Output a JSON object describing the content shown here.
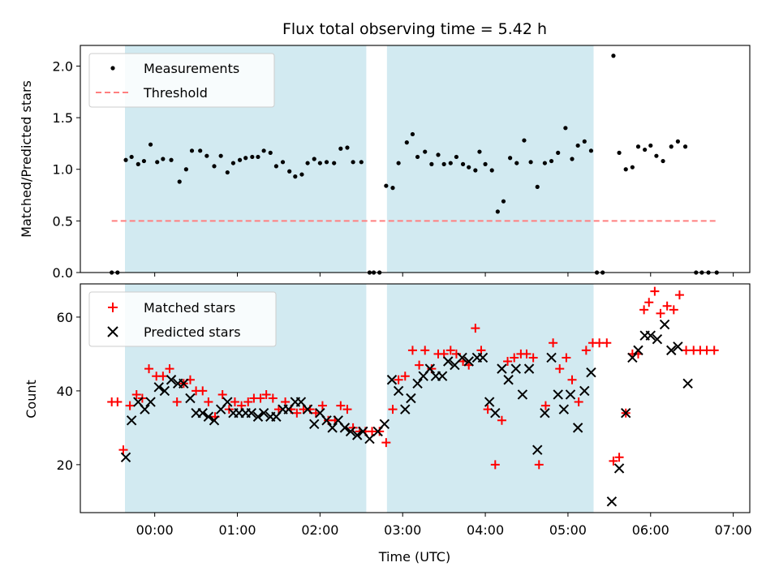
{
  "chart_data": {
    "type": "scatter",
    "title": "Flux total observing time = 5.42 h",
    "xlabel": "Time (UTC)",
    "x_unit": "hours UTC",
    "xlim": [
      -0.9,
      7.2
    ],
    "x_ticks": [
      {
        "value": 0,
        "label": "00:00"
      },
      {
        "value": 1,
        "label": "01:00"
      },
      {
        "value": 2,
        "label": "02:00"
      },
      {
        "value": 3,
        "label": "03:00"
      },
      {
        "value": 4,
        "label": "04:00"
      },
      {
        "value": 5,
        "label": "05:00"
      },
      {
        "value": 6,
        "label": "06:00"
      },
      {
        "value": 7,
        "label": "07:00"
      }
    ],
    "observing_windows": [
      [
        -0.36,
        2.56
      ],
      [
        2.81,
        5.31
      ]
    ],
    "top": {
      "ylabel": "Matched/Predicted stars",
      "ylim": [
        0,
        2.2
      ],
      "y_ticks": [
        "0.0",
        "0.5",
        "1.0",
        "1.5",
        "2.0"
      ],
      "threshold": {
        "value": 0.5,
        "x_range": [
          -0.52,
          6.8
        ]
      },
      "legend": {
        "measurements": "Measurements",
        "threshold": "Threshold",
        "position": "top-left"
      },
      "measurements": [
        [
          -0.52,
          0
        ],
        [
          -0.45,
          0
        ],
        [
          -0.35,
          1.09
        ],
        [
          -0.28,
          1.12
        ],
        [
          -0.2,
          1.05
        ],
        [
          -0.13,
          1.08
        ],
        [
          -0.05,
          1.24
        ],
        [
          0.03,
          1.07
        ],
        [
          0.1,
          1.1
        ],
        [
          0.2,
          1.09
        ],
        [
          0.3,
          0.88
        ],
        [
          0.38,
          1.0
        ],
        [
          0.45,
          1.18
        ],
        [
          0.55,
          1.18
        ],
        [
          0.63,
          1.13
        ],
        [
          0.72,
          1.03
        ],
        [
          0.8,
          1.13
        ],
        [
          0.88,
          0.97
        ],
        [
          0.95,
          1.06
        ],
        [
          1.03,
          1.09
        ],
        [
          1.1,
          1.11
        ],
        [
          1.18,
          1.12
        ],
        [
          1.25,
          1.12
        ],
        [
          1.32,
          1.18
        ],
        [
          1.4,
          1.16
        ],
        [
          1.47,
          1.03
        ],
        [
          1.55,
          1.07
        ],
        [
          1.63,
          0.98
        ],
        [
          1.7,
          0.93
        ],
        [
          1.78,
          0.95
        ],
        [
          1.85,
          1.06
        ],
        [
          1.93,
          1.1
        ],
        [
          2.0,
          1.06
        ],
        [
          2.08,
          1.07
        ],
        [
          2.17,
          1.06
        ],
        [
          2.25,
          1.2
        ],
        [
          2.33,
          1.21
        ],
        [
          2.4,
          1.07
        ],
        [
          2.5,
          1.07
        ],
        [
          2.6,
          0
        ],
        [
          2.65,
          0
        ],
        [
          2.72,
          0
        ],
        [
          2.8,
          0.84
        ],
        [
          2.88,
          0.82
        ],
        [
          2.95,
          1.06
        ],
        [
          3.05,
          1.26
        ],
        [
          3.12,
          1.34
        ],
        [
          3.18,
          1.12
        ],
        [
          3.27,
          1.17
        ],
        [
          3.35,
          1.05
        ],
        [
          3.43,
          1.14
        ],
        [
          3.5,
          1.05
        ],
        [
          3.58,
          1.06
        ],
        [
          3.65,
          1.12
        ],
        [
          3.73,
          1.05
        ],
        [
          3.8,
          1.02
        ],
        [
          3.88,
          0.99
        ],
        [
          3.93,
          1.17
        ],
        [
          4.0,
          1.05
        ],
        [
          4.08,
          0.99
        ],
        [
          4.15,
          0.59
        ],
        [
          4.22,
          0.69
        ],
        [
          4.3,
          1.11
        ],
        [
          4.38,
          1.06
        ],
        [
          4.47,
          1.28
        ],
        [
          4.55,
          1.07
        ],
        [
          4.63,
          0.83
        ],
        [
          4.72,
          1.06
        ],
        [
          4.8,
          1.08
        ],
        [
          4.88,
          1.16
        ],
        [
          4.97,
          1.4
        ],
        [
          5.05,
          1.1
        ],
        [
          5.12,
          1.23
        ],
        [
          5.2,
          1.27
        ],
        [
          5.28,
          1.18
        ],
        [
          5.35,
          0
        ],
        [
          5.42,
          0
        ],
        [
          5.55,
          2.1
        ],
        [
          5.62,
          1.16
        ],
        [
          5.7,
          1.0
        ],
        [
          5.78,
          1.02
        ],
        [
          5.85,
          1.22
        ],
        [
          5.93,
          1.19
        ],
        [
          6.0,
          1.23
        ],
        [
          6.07,
          1.13
        ],
        [
          6.15,
          1.08
        ],
        [
          6.25,
          1.22
        ],
        [
          6.33,
          1.27
        ],
        [
          6.42,
          1.22
        ],
        [
          6.55,
          0
        ],
        [
          6.62,
          0
        ],
        [
          6.7,
          0
        ],
        [
          6.8,
          0
        ]
      ]
    },
    "bottom": {
      "ylabel": "Count",
      "ylim": [
        7,
        69
      ],
      "y_ticks": [
        "20",
        "40",
        "60"
      ],
      "legend": {
        "matched": "Matched stars",
        "predicted": "Predicted stars",
        "position": "top-left"
      },
      "matched_stars": [
        [
          -0.52,
          37
        ],
        [
          -0.45,
          37
        ],
        [
          -0.38,
          24
        ],
        [
          -0.3,
          36
        ],
        [
          -0.22,
          39
        ],
        [
          -0.15,
          38
        ],
        [
          -0.07,
          46
        ],
        [
          0.02,
          44
        ],
        [
          0.1,
          44
        ],
        [
          0.18,
          46
        ],
        [
          0.27,
          37
        ],
        [
          0.35,
          42
        ],
        [
          0.43,
          43
        ],
        [
          0.5,
          40
        ],
        [
          0.58,
          40
        ],
        [
          0.65,
          37
        ],
        [
          0.73,
          33
        ],
        [
          0.82,
          39
        ],
        [
          0.9,
          35
        ],
        [
          0.97,
          37
        ],
        [
          1.05,
          36
        ],
        [
          1.13,
          37
        ],
        [
          1.2,
          38
        ],
        [
          1.28,
          38
        ],
        [
          1.35,
          39
        ],
        [
          1.43,
          38
        ],
        [
          1.5,
          35
        ],
        [
          1.58,
          37
        ],
        [
          1.65,
          35
        ],
        [
          1.72,
          34
        ],
        [
          1.8,
          35
        ],
        [
          1.88,
          35
        ],
        [
          1.95,
          34
        ],
        [
          2.03,
          36
        ],
        [
          2.1,
          32
        ],
        [
          2.18,
          32
        ],
        [
          2.25,
          36
        ],
        [
          2.33,
          35
        ],
        [
          2.4,
          30
        ],
        [
          2.48,
          29
        ],
        [
          2.55,
          29
        ],
        [
          2.63,
          29
        ],
        [
          2.72,
          29
        ],
        [
          2.8,
          26
        ],
        [
          2.88,
          35
        ],
        [
          2.95,
          43
        ],
        [
          3.03,
          44
        ],
        [
          3.12,
          51
        ],
        [
          3.2,
          47
        ],
        [
          3.27,
          51
        ],
        [
          3.35,
          46
        ],
        [
          3.43,
          50
        ],
        [
          3.5,
          50
        ],
        [
          3.58,
          51
        ],
        [
          3.65,
          50
        ],
        [
          3.73,
          48
        ],
        [
          3.8,
          47
        ],
        [
          3.88,
          57
        ],
        [
          3.95,
          51
        ],
        [
          4.03,
          35
        ],
        [
          4.12,
          20
        ],
        [
          4.2,
          32
        ],
        [
          4.27,
          48
        ],
        [
          4.35,
          49
        ],
        [
          4.43,
          50
        ],
        [
          4.5,
          50
        ],
        [
          4.58,
          49
        ],
        [
          4.65,
          20
        ],
        [
          4.73,
          36
        ],
        [
          4.82,
          53
        ],
        [
          4.9,
          46
        ],
        [
          4.98,
          49
        ],
        [
          5.05,
          43
        ],
        [
          5.13,
          37
        ],
        [
          5.22,
          51
        ],
        [
          5.3,
          53
        ],
        [
          5.38,
          53
        ],
        [
          5.47,
          53
        ],
        [
          5.55,
          21
        ],
        [
          5.62,
          22
        ],
        [
          5.7,
          34
        ],
        [
          5.78,
          50
        ],
        [
          5.85,
          50
        ],
        [
          5.92,
          62
        ],
        [
          5.98,
          64
        ],
        [
          6.05,
          67
        ],
        [
          6.12,
          61
        ],
        [
          6.2,
          63
        ],
        [
          6.28,
          62
        ],
        [
          6.35,
          66
        ],
        [
          6.43,
          51
        ],
        [
          6.52,
          51
        ],
        [
          6.6,
          51
        ],
        [
          6.68,
          51
        ],
        [
          6.77,
          51
        ]
      ],
      "predicted_stars": [
        [
          -0.35,
          22
        ],
        [
          -0.28,
          32
        ],
        [
          -0.2,
          37
        ],
        [
          -0.12,
          35
        ],
        [
          -0.05,
          37
        ],
        [
          0.05,
          41
        ],
        [
          0.12,
          40
        ],
        [
          0.2,
          43
        ],
        [
          0.28,
          42
        ],
        [
          0.35,
          42
        ],
        [
          0.43,
          38
        ],
        [
          0.5,
          34
        ],
        [
          0.58,
          34
        ],
        [
          0.65,
          33
        ],
        [
          0.72,
          32
        ],
        [
          0.8,
          35
        ],
        [
          0.88,
          37
        ],
        [
          0.95,
          34
        ],
        [
          1.02,
          34
        ],
        [
          1.1,
          34
        ],
        [
          1.17,
          34
        ],
        [
          1.25,
          33
        ],
        [
          1.32,
          34
        ],
        [
          1.4,
          33
        ],
        [
          1.47,
          33
        ],
        [
          1.55,
          35
        ],
        [
          1.62,
          35
        ],
        [
          1.7,
          37
        ],
        [
          1.77,
          37
        ],
        [
          1.85,
          35
        ],
        [
          1.93,
          31
        ],
        [
          2.0,
          34
        ],
        [
          2.08,
          32
        ],
        [
          2.15,
          30
        ],
        [
          2.22,
          32
        ],
        [
          2.3,
          30
        ],
        [
          2.37,
          29
        ],
        [
          2.45,
          28
        ],
        [
          2.52,
          29
        ],
        [
          2.6,
          27
        ],
        [
          2.7,
          29
        ],
        [
          2.78,
          31
        ],
        [
          2.87,
          43
        ],
        [
          2.95,
          40
        ],
        [
          3.03,
          35
        ],
        [
          3.1,
          38
        ],
        [
          3.18,
          42
        ],
        [
          3.25,
          44
        ],
        [
          3.33,
          46
        ],
        [
          3.4,
          44
        ],
        [
          3.48,
          44
        ],
        [
          3.55,
          48
        ],
        [
          3.63,
          47
        ],
        [
          3.72,
          49
        ],
        [
          3.8,
          48
        ],
        [
          3.9,
          49
        ],
        [
          3.97,
          49
        ],
        [
          4.05,
          37
        ],
        [
          4.12,
          34
        ],
        [
          4.2,
          46
        ],
        [
          4.28,
          43
        ],
        [
          4.37,
          46
        ],
        [
          4.45,
          39
        ],
        [
          4.53,
          46
        ],
        [
          4.63,
          24
        ],
        [
          4.72,
          34
        ],
        [
          4.8,
          49
        ],
        [
          4.88,
          39
        ],
        [
          4.95,
          35
        ],
        [
          5.03,
          39
        ],
        [
          5.12,
          30
        ],
        [
          5.2,
          40
        ],
        [
          5.28,
          45
        ],
        [
          5.53,
          10
        ],
        [
          5.62,
          19
        ],
        [
          5.7,
          34
        ],
        [
          5.78,
          49
        ],
        [
          5.85,
          51
        ],
        [
          5.93,
          55
        ],
        [
          6.0,
          55
        ],
        [
          6.08,
          54
        ],
        [
          6.17,
          58
        ],
        [
          6.25,
          51
        ],
        [
          6.33,
          52
        ],
        [
          6.45,
          42
        ]
      ]
    }
  },
  "colors": {
    "shade": "#add8e6",
    "measurement": "#000000",
    "threshold": "#ff7f7f",
    "matched": "#ff0000",
    "predicted": "#000000"
  }
}
